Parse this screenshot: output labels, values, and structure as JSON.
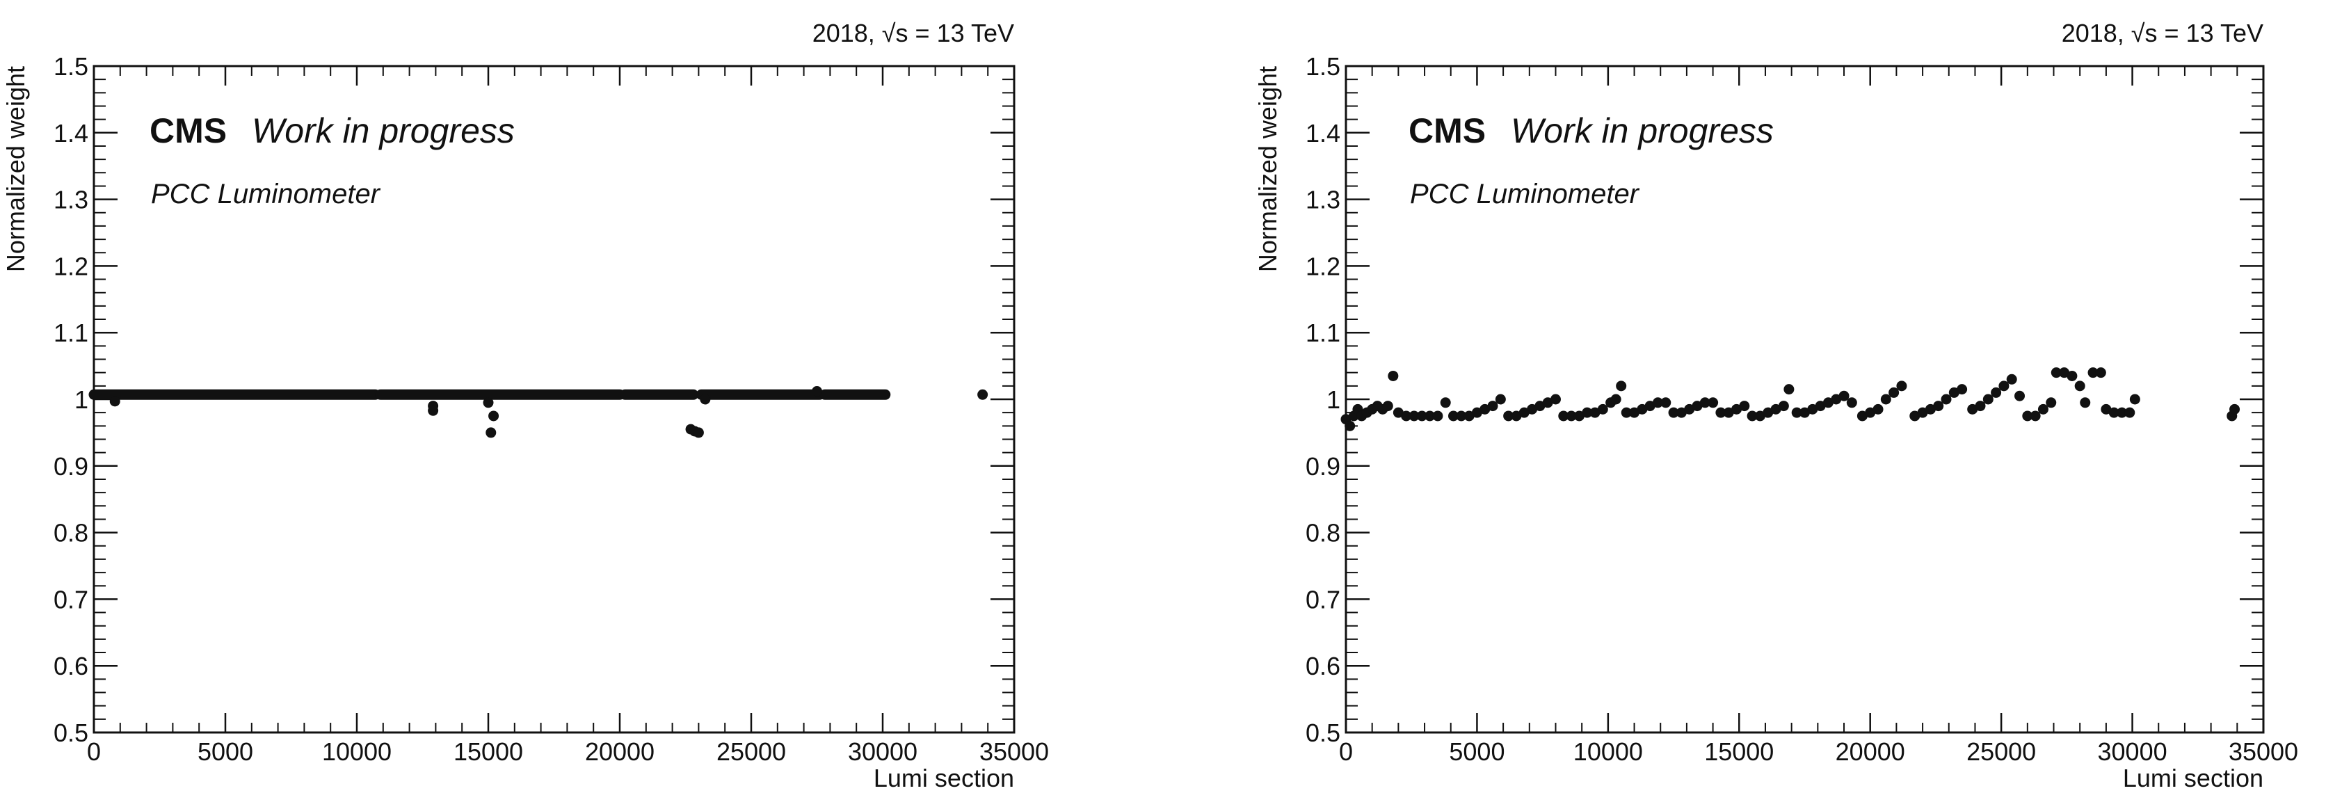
{
  "chart_data": [
    {
      "type": "scatter",
      "title": "",
      "xlabel": "Lumi section",
      "ylabel": "Normalized weight",
      "xlim": [
        0,
        35000
      ],
      "ylim": [
        0.5,
        1.5
      ],
      "xticks": [
        "0",
        "5000",
        "10000",
        "15000",
        "20000",
        "25000",
        "30000",
        "35000"
      ],
      "yticks": [
        "0.5",
        "0.6",
        "0.7",
        "0.8",
        "0.9",
        "1",
        "1.1",
        "1.2",
        "1.3",
        "1.4",
        "1.5"
      ],
      "energy_label": "2018, √s = 13 TeV",
      "experiment": "CMS",
      "status": "Work in progress",
      "detector": "PCC Luminometer",
      "marker_color": "#111111",
      "grid": false,
      "series": [
        {
          "segments": [
            {
              "x": [
                0,
                10700
              ],
              "y": 1.007
            },
            {
              "x": [
                10900,
                20000
              ],
              "y": 1.007
            },
            {
              "x": [
                20200,
                22800
              ],
              "y": 1.007
            },
            {
              "x": [
                23100,
                27600
              ],
              "y": 1.007
            },
            {
              "x": [
                27800,
                30100
              ],
              "y": 1.007
            }
          ],
          "points": [
            {
              "x": 800,
              "y": 0.997
            },
            {
              "x": 12900,
              "y": 0.99
            },
            {
              "x": 12900,
              "y": 0.983
            },
            {
              "x": 15000,
              "y": 0.995
            },
            {
              "x": 15200,
              "y": 0.975
            },
            {
              "x": 15100,
              "y": 0.95
            },
            {
              "x": 22700,
              "y": 0.955
            },
            {
              "x": 22850,
              "y": 0.952
            },
            {
              "x": 23000,
              "y": 0.95
            },
            {
              "x": 23250,
              "y": 1.0
            },
            {
              "x": 27500,
              "y": 1.012
            },
            {
              "x": 33800,
              "y": 1.007
            }
          ]
        }
      ]
    },
    {
      "type": "scatter",
      "title": "",
      "xlabel": "Lumi section",
      "ylabel": "Normalized weight",
      "xlim": [
        0,
        35000
      ],
      "ylim": [
        0.5,
        1.5
      ],
      "xticks": [
        "0",
        "5000",
        "10000",
        "15000",
        "20000",
        "25000",
        "30000",
        "35000"
      ],
      "yticks": [
        "0.5",
        "0.6",
        "0.7",
        "0.8",
        "0.9",
        "1",
        "1.1",
        "1.2",
        "1.3",
        "1.4",
        "1.5"
      ],
      "energy_label": "2018, √s = 13 TeV",
      "experiment": "CMS",
      "status": "Work in progress",
      "detector": "PCC Luminometer",
      "marker_color": "#111111",
      "grid": false,
      "series": [
        {
          "points": [
            {
              "x": 0,
              "y": 0.97
            },
            {
              "x": 150,
              "y": 0.96
            },
            {
              "x": 300,
              "y": 0.975
            },
            {
              "x": 450,
              "y": 0.985
            },
            {
              "x": 600,
              "y": 0.975
            },
            {
              "x": 800,
              "y": 0.98
            },
            {
              "x": 1000,
              "y": 0.985
            },
            {
              "x": 1200,
              "y": 0.99
            },
            {
              "x": 1400,
              "y": 0.985
            },
            {
              "x": 1600,
              "y": 0.99
            },
            {
              "x": 1800,
              "y": 1.035
            },
            {
              "x": 2000,
              "y": 0.98
            },
            {
              "x": 2300,
              "y": 0.975
            },
            {
              "x": 2600,
              "y": 0.975
            },
            {
              "x": 2900,
              "y": 0.975
            },
            {
              "x": 3200,
              "y": 0.975
            },
            {
              "x": 3500,
              "y": 0.975
            },
            {
              "x": 3800,
              "y": 0.995
            },
            {
              "x": 4100,
              "y": 0.975
            },
            {
              "x": 4400,
              "y": 0.975
            },
            {
              "x": 4700,
              "y": 0.975
            },
            {
              "x": 5000,
              "y": 0.98
            },
            {
              "x": 5300,
              "y": 0.985
            },
            {
              "x": 5600,
              "y": 0.99
            },
            {
              "x": 5900,
              "y": 1.0
            },
            {
              "x": 6200,
              "y": 0.975
            },
            {
              "x": 6500,
              "y": 0.975
            },
            {
              "x": 6800,
              "y": 0.98
            },
            {
              "x": 7100,
              "y": 0.985
            },
            {
              "x": 7400,
              "y": 0.99
            },
            {
              "x": 7700,
              "y": 0.995
            },
            {
              "x": 8000,
              "y": 1.0
            },
            {
              "x": 8300,
              "y": 0.975
            },
            {
              "x": 8600,
              "y": 0.975
            },
            {
              "x": 8900,
              "y": 0.975
            },
            {
              "x": 9200,
              "y": 0.98
            },
            {
              "x": 9500,
              "y": 0.98
            },
            {
              "x": 9800,
              "y": 0.985
            },
            {
              "x": 10100,
              "y": 0.995
            },
            {
              "x": 10300,
              "y": 1.0
            },
            {
              "x": 10500,
              "y": 1.02
            },
            {
              "x": 10700,
              "y": 0.98
            },
            {
              "x": 11000,
              "y": 0.98
            },
            {
              "x": 11300,
              "y": 0.985
            },
            {
              "x": 11600,
              "y": 0.99
            },
            {
              "x": 11900,
              "y": 0.995
            },
            {
              "x": 12200,
              "y": 0.995
            },
            {
              "x": 12500,
              "y": 0.98
            },
            {
              "x": 12800,
              "y": 0.98
            },
            {
              "x": 13100,
              "y": 0.985
            },
            {
              "x": 13400,
              "y": 0.99
            },
            {
              "x": 13700,
              "y": 0.995
            },
            {
              "x": 14000,
              "y": 0.995
            },
            {
              "x": 14300,
              "y": 0.98
            },
            {
              "x": 14600,
              "y": 0.98
            },
            {
              "x": 14900,
              "y": 0.985
            },
            {
              "x": 15200,
              "y": 0.99
            },
            {
              "x": 15500,
              "y": 0.975
            },
            {
              "x": 15800,
              "y": 0.975
            },
            {
              "x": 16100,
              "y": 0.98
            },
            {
              "x": 16400,
              "y": 0.985
            },
            {
              "x": 16700,
              "y": 0.99
            },
            {
              "x": 16900,
              "y": 1.015
            },
            {
              "x": 17200,
              "y": 0.98
            },
            {
              "x": 17500,
              "y": 0.98
            },
            {
              "x": 17800,
              "y": 0.985
            },
            {
              "x": 18100,
              "y": 0.99
            },
            {
              "x": 18400,
              "y": 0.995
            },
            {
              "x": 18700,
              "y": 1.0
            },
            {
              "x": 19000,
              "y": 1.005
            },
            {
              "x": 19300,
              "y": 0.995
            },
            {
              "x": 19700,
              "y": 0.975
            },
            {
              "x": 20000,
              "y": 0.98
            },
            {
              "x": 20300,
              "y": 0.985
            },
            {
              "x": 20600,
              "y": 1.0
            },
            {
              "x": 20900,
              "y": 1.01
            },
            {
              "x": 21200,
              "y": 1.02
            },
            {
              "x": 21700,
              "y": 0.975
            },
            {
              "x": 22000,
              "y": 0.98
            },
            {
              "x": 22300,
              "y": 0.985
            },
            {
              "x": 22600,
              "y": 0.99
            },
            {
              "x": 22900,
              "y": 1.0
            },
            {
              "x": 23200,
              "y": 1.01
            },
            {
              "x": 23500,
              "y": 1.015
            },
            {
              "x": 23900,
              "y": 0.985
            },
            {
              "x": 24200,
              "y": 0.99
            },
            {
              "x": 24500,
              "y": 1.0
            },
            {
              "x": 24800,
              "y": 1.01
            },
            {
              "x": 25100,
              "y": 1.02
            },
            {
              "x": 25400,
              "y": 1.03
            },
            {
              "x": 25700,
              "y": 1.005
            },
            {
              "x": 26000,
              "y": 0.975
            },
            {
              "x": 26300,
              "y": 0.975
            },
            {
              "x": 26600,
              "y": 0.985
            },
            {
              "x": 26900,
              "y": 0.995
            },
            {
              "x": 27100,
              "y": 1.04
            },
            {
              "x": 27400,
              "y": 1.04
            },
            {
              "x": 27700,
              "y": 1.035
            },
            {
              "x": 28000,
              "y": 1.02
            },
            {
              "x": 28200,
              "y": 0.995
            },
            {
              "x": 28500,
              "y": 1.04
            },
            {
              "x": 28800,
              "y": 1.04
            },
            {
              "x": 29000,
              "y": 0.985
            },
            {
              "x": 29300,
              "y": 0.98
            },
            {
              "x": 29600,
              "y": 0.98
            },
            {
              "x": 29900,
              "y": 0.98
            },
            {
              "x": 30100,
              "y": 1.0
            },
            {
              "x": 33800,
              "y": 0.975
            },
            {
              "x": 33900,
              "y": 0.985
            }
          ]
        }
      ]
    }
  ]
}
